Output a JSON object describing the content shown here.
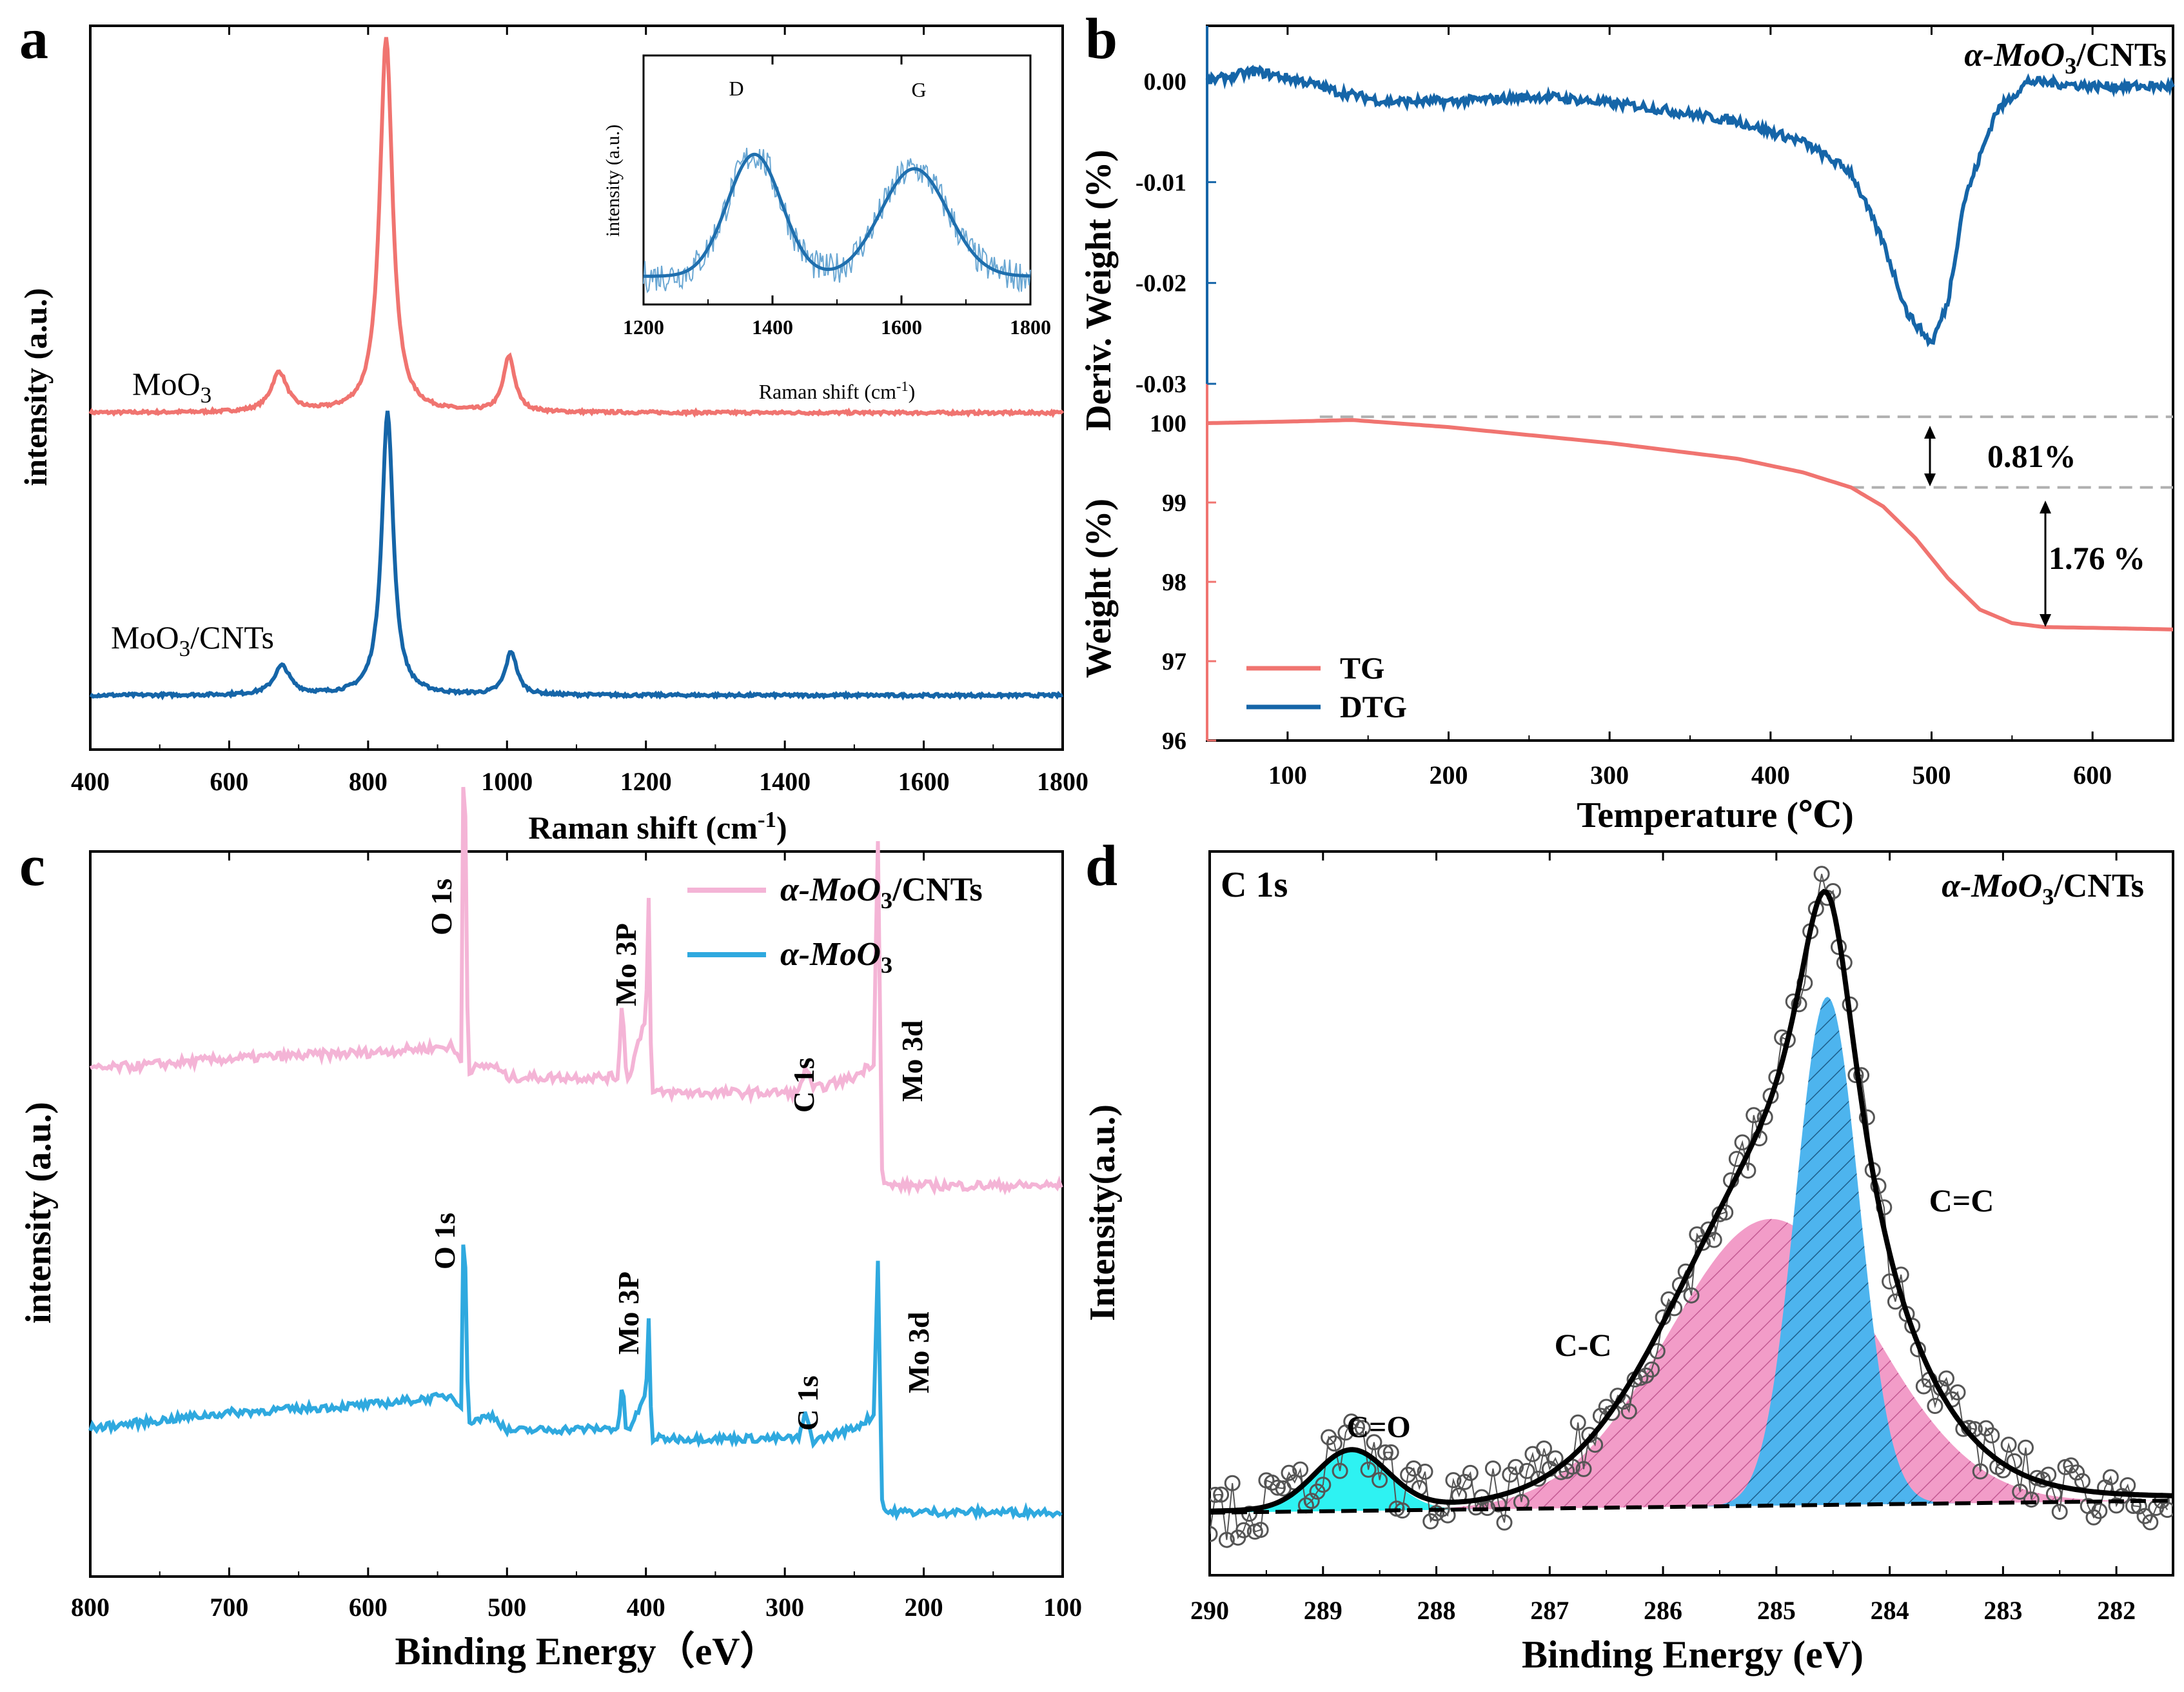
{
  "panels": {
    "a": {
      "letter": "a",
      "xlabel": "Raman shift (cm",
      "xlabel_sup": "-1",
      "xlabel_end": ")",
      "ylabel": "intensity (a.u.)",
      "label_moo3": "MoO",
      "label_moo3_sub": "3",
      "label_cnt": "MoO",
      "label_cnt_sub": "3",
      "label_cnt_end": "/CNTs",
      "inset": {
        "xlabel": "Raman shift (cm",
        "xlabel_sup": "-1",
        "xlabel_end": ")",
        "ylabel": "intensity (a.u.)",
        "peak_d": "D",
        "peak_g": "G"
      }
    },
    "b": {
      "letter": "b",
      "title": "α-MoO",
      "title_sub": "3",
      "title_end": "/CNTs",
      "xlabel": "Temperature (℃)",
      "ylabel_top": "Deriv. Weight  (%)",
      "ylabel_bottom": "Weight (%)",
      "ann_1": "0.81%",
      "ann_2": "1.76 %",
      "legend_tg": "TG",
      "legend_dtg": "DTG"
    },
    "c": {
      "letter": "c",
      "xlabel": "Binding Energy（eV）",
      "ylabel": "intensity (a.u.)",
      "legend_1": "α-MoO",
      "legend_1_sub": "3",
      "legend_1_end": "/CNTs",
      "legend_2": "α-MoO",
      "legend_2_sub": "3",
      "peaks": [
        "O 1s",
        "Mo 3P",
        "C 1s",
        "Mo 3d"
      ]
    },
    "d": {
      "letter": "d",
      "corner": "C 1s",
      "title": "α-MoO",
      "title_sub": "3",
      "title_end": "/CNTs",
      "xlabel": "Binding Energy (eV)",
      "ylabel": "Intensity(a.u.)",
      "comp_cc": "C-C",
      "comp_ceqc": "C=C",
      "comp_ceqo": "C=O"
    }
  },
  "colors": {
    "red": "#F07470",
    "blue": "#1565A8",
    "inset_blue": "#1F6FAE",
    "pink": "#F4B4D6",
    "cyan_line": "#2FA9DF",
    "cc_fill": "#F29CC8",
    "ceqc_fill": "#4DB4EE",
    "ceqo_fill": "#2EF2F2",
    "ceqc_text": "#3FB6EE",
    "cc_text": "#F08CC0",
    "ceqo_text": "#22E0E8",
    "grey_dash": "#B0B0B0"
  },
  "chart_data": [
    {
      "id": "a",
      "type": "line",
      "title": "",
      "xlabel": "Raman shift (cm-1)",
      "ylabel": "intensity (a.u.)",
      "xlim": [
        400,
        1800
      ],
      "xticks": [
        400,
        600,
        800,
        1000,
        1200,
        1400,
        1600,
        1800
      ],
      "y_ticks_shown": false,
      "series": [
        {
          "name": "MoO3",
          "baseline": 1.0,
          "peaks": [
            {
              "x": 672,
              "h": 0.17,
              "w": 14
            },
            {
              "x": 826,
              "h": 1.62,
              "w": 11
            },
            {
              "x": 1003,
              "h": 0.24,
              "w": 10
            }
          ]
        },
        {
          "name": "MoO3/CNTs",
          "baseline": 0.0,
          "peaks": [
            {
              "x": 676,
              "h": 0.12,
              "w": 14
            },
            {
              "x": 828,
              "h": 1.18,
              "w": 10
            },
            {
              "x": 1006,
              "h": 0.18,
              "w": 10
            }
          ]
        }
      ]
    },
    {
      "id": "a-inset",
      "type": "line",
      "xlabel": "Raman shift (cm-1)",
      "ylabel": "intensity (a.u.)",
      "xlim": [
        1200,
        1800
      ],
      "xticks": [
        1200,
        1400,
        1600,
        1800
      ],
      "peaks": [
        {
          "label": "D",
          "x": 1372,
          "h": 0.68,
          "w": 42
        },
        {
          "label": "G",
          "x": 1620,
          "h": 0.6,
          "w": 52
        }
      ]
    },
    {
      "id": "b",
      "type": "line",
      "title": "α-MoO3/CNTs",
      "xlabel": "Temperature (℃)",
      "xlim": [
        50,
        650
      ],
      "xticks": [
        100,
        200,
        300,
        400,
        500,
        600
      ],
      "ylim_top": [
        -0.03,
        0.005
      ],
      "yticks_top": [
        0.0,
        -0.01,
        -0.02,
        -0.03
      ],
      "ylim_bottom": [
        96,
        100.1
      ],
      "yticks_bottom": [
        96,
        97,
        98,
        99,
        100
      ],
      "series": [
        {
          "name": "DTG",
          "axis": "top",
          "x": [
            50,
            80,
            110,
            130,
            160,
            200,
            260,
            320,
            380,
            420,
            450,
            470,
            485,
            500,
            510,
            520,
            540,
            560,
            600,
            650
          ],
          "y": [
            0.0,
            0.001,
            0.0,
            -0.001,
            -0.002,
            -0.002,
            -0.0015,
            -0.0025,
            -0.004,
            -0.006,
            -0.009,
            -0.016,
            -0.023,
            -0.026,
            -0.022,
            -0.012,
            -0.003,
            0.0,
            -0.0005,
            -0.0005
          ]
        },
        {
          "name": "TG",
          "axis": "bottom",
          "x": [
            50,
            100,
            140,
            200,
            300,
            380,
            420,
            450,
            470,
            490,
            510,
            530,
            550,
            570,
            600,
            650
          ],
          "y": [
            100.0,
            100.02,
            100.04,
            99.95,
            99.75,
            99.55,
            99.38,
            99.19,
            98.95,
            98.55,
            98.05,
            97.65,
            97.48,
            97.43,
            97.42,
            97.4
          ]
        }
      ],
      "annotations": [
        "0.81%",
        "1.76 %"
      ]
    },
    {
      "id": "c",
      "type": "line",
      "xlabel": "Binding Energy（eV）",
      "ylabel": "intensity (a.u.)",
      "xlim": [
        800,
        100
      ],
      "xticks": [
        800,
        700,
        600,
        500,
        400,
        300,
        200,
        100
      ],
      "series": [
        {
          "name": "α-MoO3/CNTs",
          "x": [
            800,
            700,
            600,
            540,
            533,
            531,
            528,
            510,
            500,
            420,
            417,
            414,
            400,
            398,
            396,
            300,
            290,
            285,
            280,
            250,
            236,
            233,
            230,
            228,
            100
          ],
          "y": [
            0.85,
            0.92,
            0.96,
            1.0,
            0.9,
            3.3,
            0.85,
            0.88,
            0.8,
            0.8,
            1.35,
            0.75,
            1.2,
            1.95,
            0.7,
            0.7,
            0.7,
            0.88,
            0.72,
            0.8,
            0.9,
            2.35,
            0.2,
            0.1,
            0.1
          ]
        },
        {
          "name": "α-MoO3",
          "x": [
            800,
            700,
            600,
            540,
            533,
            531,
            528,
            510,
            500,
            420,
            417,
            414,
            400,
            398,
            396,
            300,
            290,
            285,
            280,
            250,
            236,
            233,
            230,
            228,
            100
          ],
          "y": [
            0.7,
            0.82,
            0.88,
            0.95,
            0.88,
            2.55,
            0.75,
            0.8,
            0.68,
            0.7,
            1.05,
            0.65,
            0.95,
            1.55,
            0.62,
            0.62,
            0.62,
            0.82,
            0.6,
            0.7,
            0.8,
            2.0,
            0.15,
            0.05,
            0.05
          ]
        }
      ],
      "peak_labels": [
        "O 1s",
        "Mo 3P",
        "C 1s",
        "Mo 3d"
      ]
    },
    {
      "id": "d",
      "type": "scatter",
      "title": "α-MoO3/CNTs",
      "xlabel": "Binding Energy (eV)",
      "ylabel": "Intensity(a.u.)",
      "xlim": [
        290,
        281.5
      ],
      "xticks": [
        290,
        289,
        288,
        287,
        286,
        285,
        284,
        283,
        282
      ],
      "components": [
        {
          "name": "C=O",
          "center": 288.75,
          "height": 0.09,
          "width": 0.32
        },
        {
          "name": "C-C",
          "center": 285.05,
          "height": 0.44,
          "width": 0.9
        },
        {
          "name": "C=C",
          "center": 284.55,
          "height": 0.78,
          "width": 0.28
        }
      ],
      "baseline": [
        0.0,
        0.0
      ],
      "envelope_peak": {
        "x": 284.6,
        "y": 1.0
      }
    }
  ]
}
